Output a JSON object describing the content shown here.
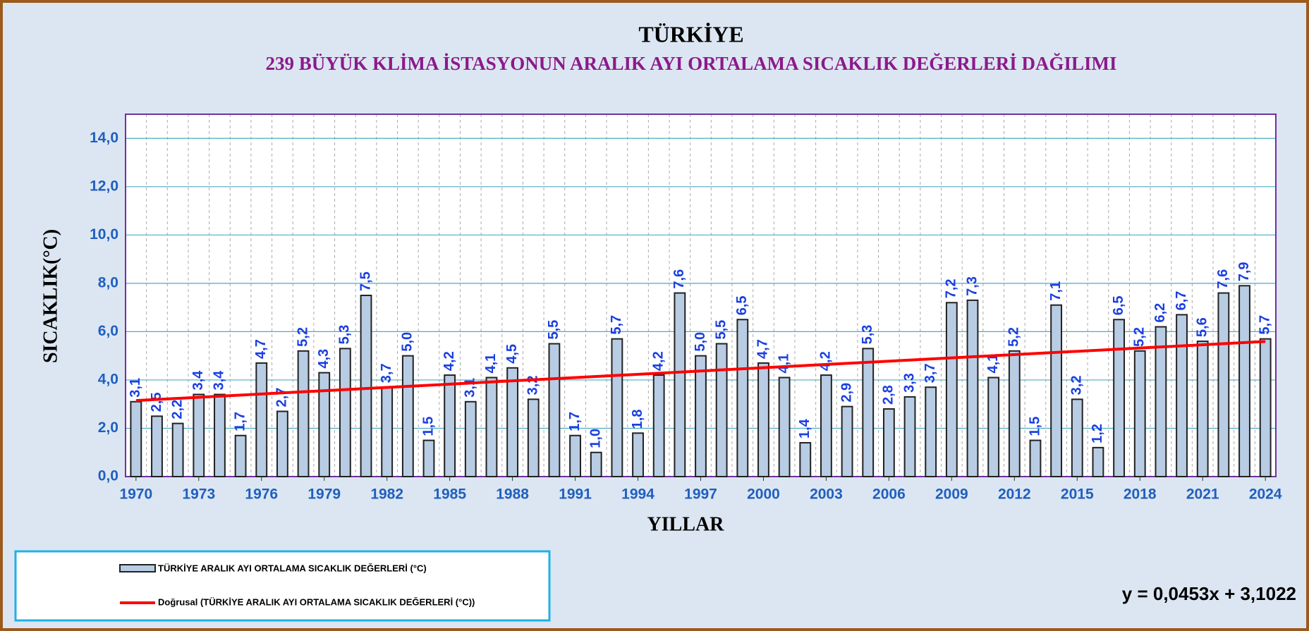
{
  "chart_data": {
    "type": "bar",
    "title": "TÜRKİYE",
    "subtitle": "239 BÜYÜK KLİMA İSTASYONUN  ARALIK  AYI ORTALAMA SICAKLIK DEĞERLERİ  DAĞILIMI",
    "x_label": "YILLAR",
    "y_label": "SICAKLIK(°C)",
    "categories": [
      "1970",
      null,
      null,
      "1973",
      null,
      null,
      "1976",
      null,
      null,
      "1979",
      null,
      null,
      "1982",
      null,
      null,
      "1985",
      null,
      null,
      "1988",
      null,
      null,
      "1991",
      null,
      null,
      "1994",
      null,
      null,
      "1997",
      null,
      null,
      "2000",
      null,
      null,
      "2003",
      null,
      null,
      "2006",
      null,
      null,
      "2009",
      null,
      null,
      "2012",
      null,
      null,
      "2015",
      null,
      null,
      "2018",
      null,
      null,
      "2021",
      null,
      null,
      "2024"
    ],
    "series": [
      {
        "name": "TÜRKİYE ARALIK AYI ORTALAMA SICAKLIK DEĞERLERİ (°C)",
        "color": "#b8cce4",
        "values": [
          3.1,
          2.5,
          2.2,
          3.4,
          3.4,
          1.7,
          4.7,
          2.7,
          5.2,
          4.3,
          5.3,
          7.5,
          3.7,
          5.0,
          1.5,
          4.2,
          3.1,
          4.1,
          4.5,
          3.2,
          5.5,
          1.7,
          1.0,
          5.7,
          1.8,
          4.2,
          7.6,
          5.0,
          5.5,
          6.5,
          4.7,
          4.1,
          1.4,
          4.2,
          2.9,
          5.3,
          2.8,
          3.3,
          3.7,
          7.2,
          7.3,
          4.1,
          5.2,
          1.5,
          7.1,
          3.2,
          1.2,
          6.5,
          5.2,
          6.2,
          6.7,
          5.6,
          7.6,
          7.9,
          5.7
        ],
        "value_labels": [
          "3,1",
          "2,5",
          "2,2",
          "3,4",
          "3,4",
          "1,7",
          "4,7",
          "2,7",
          "5,2",
          "4,3",
          "5,3",
          "7,5",
          "3,7",
          "5,0",
          "1,5",
          "4,2",
          "3,1",
          "4,1",
          "4,5",
          "3,2",
          "5,5",
          "1,7",
          "1,0",
          "5,7",
          "1,8",
          "4,2",
          "7,6",
          "5,0",
          "5,5",
          "6,5",
          "4,7",
          "4,1",
          "1,4",
          "4,2",
          "2,9",
          "5,3",
          "2,8",
          "3,3",
          "3,7",
          "7,2",
          "7,3",
          "4,1",
          "5,2",
          "1,5",
          "7,1",
          "3,2",
          "1,2",
          "6,5",
          "5,2",
          "6,2",
          "6,7",
          "5,6",
          "7,6",
          "7,9",
          "5,7"
        ]
      }
    ],
    "trendline": {
      "name": "Doğrusal (TÜRKİYE ARALIK AYI ORTALAMA SICAKLIK DEĞERLERİ (°C))",
      "color": "#ff0000",
      "slope": 0.0453,
      "intercept": 3.1022,
      "label": "y = 0,0453x + 3,1022"
    },
    "ylim": [
      0,
      15
    ],
    "yticks": [
      {
        "value": 0,
        "label": "0,0"
      },
      {
        "value": 2,
        "label": "2,0"
      },
      {
        "value": 4,
        "label": "4,0"
      },
      {
        "value": 6,
        "label": "6,0"
      },
      {
        "value": 8,
        "label": "8,0"
      },
      {
        "value": 10,
        "label": "10,0"
      },
      {
        "value": 12,
        "label": "12,0"
      },
      {
        "value": 14,
        "label": "14,0"
      }
    ],
    "grid": true
  }
}
